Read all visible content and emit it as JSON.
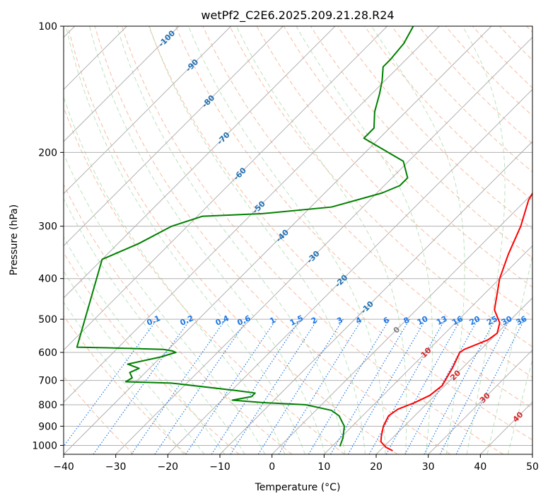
{
  "chart_data": {
    "type": "line",
    "title": "wetPf2_C2E6.2025.209.21.28.R24",
    "xlabel": "Temperature (°C)",
    "ylabel": "Pressure (hPa)",
    "xlim": [
      -40,
      50
    ],
    "ylim": [
      1050,
      100
    ],
    "y_scale": "log",
    "x_ticks": [
      -40,
      -30,
      -20,
      -10,
      0,
      10,
      20,
      30,
      40,
      50
    ],
    "x_tick_labels": [
      "−40",
      "−30",
      "−20",
      "−10",
      "0",
      "10",
      "20",
      "30",
      "40",
      "50"
    ],
    "y_ticks": [
      100,
      200,
      300,
      400,
      500,
      600,
      700,
      800,
      900,
      1000
    ],
    "y_tick_labels": [
      "100",
      "200",
      "300",
      "400",
      "500",
      "600",
      "700",
      "800",
      "900",
      "1000"
    ],
    "grid": true,
    "series": [
      {
        "color": "#ff0000",
        "points": [
          {
            "t": 22.5,
            "p": 1030
          },
          {
            "t": 20.5,
            "p": 1010
          },
          {
            "t": 18.5,
            "p": 980
          },
          {
            "t": 17.5,
            "p": 950
          },
          {
            "t": 16.0,
            "p": 900
          },
          {
            "t": 15.0,
            "p": 850
          },
          {
            "t": 15.5,
            "p": 820
          },
          {
            "t": 17.5,
            "p": 790
          },
          {
            "t": 19.0,
            "p": 760
          },
          {
            "t": 19.5,
            "p": 720
          },
          {
            "t": 18.0,
            "p": 650
          },
          {
            "t": 16.5,
            "p": 600
          },
          {
            "t": 16.8,
            "p": 590
          },
          {
            "t": 19.5,
            "p": 560
          },
          {
            "t": 20.0,
            "p": 540
          },
          {
            "t": 18.5,
            "p": 510
          },
          {
            "t": 15.0,
            "p": 475
          },
          {
            "t": 10.0,
            "p": 400
          },
          {
            "t": 7.0,
            "p": 350
          },
          {
            "t": 4.0,
            "p": 300
          },
          {
            "t": 0.5,
            "p": 260
          },
          {
            "t": -2.0,
            "p": 220
          },
          {
            "t": -3.0,
            "p": 195
          },
          {
            "t": -4.5,
            "p": 180
          },
          {
            "t": -8.5,
            "p": 155
          },
          {
            "t": -11.0,
            "p": 140
          },
          {
            "t": -13.0,
            "p": 130
          },
          {
            "t": -16.5,
            "p": 118
          },
          {
            "t": -19.5,
            "p": 110
          },
          {
            "t": -22.0,
            "p": 100
          }
        ]
      },
      {
        "color": "#008000",
        "points": [
          {
            "t": 11.5,
            "p": 1005
          },
          {
            "t": 10.5,
            "p": 960
          },
          {
            "t": 8.5,
            "p": 900
          },
          {
            "t": 5.5,
            "p": 850
          },
          {
            "t": 3.0,
            "p": 825
          },
          {
            "t": -3.0,
            "p": 800
          },
          {
            "t": -12.0,
            "p": 790
          },
          {
            "t": -18.0,
            "p": 780
          },
          {
            "t": -15.0,
            "p": 765
          },
          {
            "t": -15.0,
            "p": 750
          },
          {
            "t": -19.0,
            "p": 740
          },
          {
            "t": -33.0,
            "p": 710
          },
          {
            "t": -42.0,
            "p": 705
          },
          {
            "t": -41.5,
            "p": 690
          },
          {
            "t": -43.0,
            "p": 670
          },
          {
            "t": -42.0,
            "p": 655
          },
          {
            "t": -45.0,
            "p": 640
          },
          {
            "t": -40.0,
            "p": 615
          },
          {
            "t": -38.0,
            "p": 600
          },
          {
            "t": -39.0,
            "p": 595
          },
          {
            "t": -41.0,
            "p": 590
          },
          {
            "t": -52.0,
            "p": 585
          },
          {
            "t": -58.0,
            "p": 583
          },
          {
            "t": -70.0,
            "p": 360
          },
          {
            "t": -66.0,
            "p": 330
          },
          {
            "t": -63.0,
            "p": 300
          },
          {
            "t": -59.0,
            "p": 284
          },
          {
            "t": -48.0,
            "p": 280
          },
          {
            "t": -36.0,
            "p": 270
          },
          {
            "t": -29.0,
            "p": 250
          },
          {
            "t": -27.0,
            "p": 240
          },
          {
            "t": -27.0,
            "p": 230
          },
          {
            "t": -31.0,
            "p": 210
          },
          {
            "t": -38.0,
            "p": 195
          },
          {
            "t": -43.0,
            "p": 185
          },
          {
            "t": -43.0,
            "p": 175
          },
          {
            "t": -46.0,
            "p": 160
          },
          {
            "t": -48.5,
            "p": 145
          },
          {
            "t": -50.5,
            "p": 135
          },
          {
            "t": -53.0,
            "p": 125
          },
          {
            "t": -53.0,
            "p": 120
          },
          {
            "t": -53.5,
            "p": 110
          },
          {
            "t": -55.0,
            "p": 100
          }
        ]
      }
    ],
    "dry_adiabat_labels": [
      "-100",
      "-90",
      "-80",
      "-70",
      "-60",
      "-50",
      "-40",
      "-30",
      "-20",
      "-10",
      "0",
      "10",
      "20",
      "30",
      "40"
    ],
    "mixing_ratio_labels": [
      "0.1",
      "0.2",
      "0.4",
      "0.6",
      "1",
      "1.5",
      "2",
      "3",
      "4",
      "6",
      "8",
      "10",
      "13",
      "16",
      "20",
      "25",
      "30",
      "36"
    ],
    "colors": {
      "temperature": "#ff0000",
      "dewpoint": "#008000",
      "isobar": "#b0b0b0",
      "isotherm": "#b0b0b0",
      "dry_adiabat": "#f4a582",
      "moist_adiabat": "#8fcf8f",
      "mixing_ratio": "#1f77e4",
      "label_blue": "#1f6fb4",
      "label_red": "#d62728",
      "label_gray": "#7f7f7f"
    }
  }
}
